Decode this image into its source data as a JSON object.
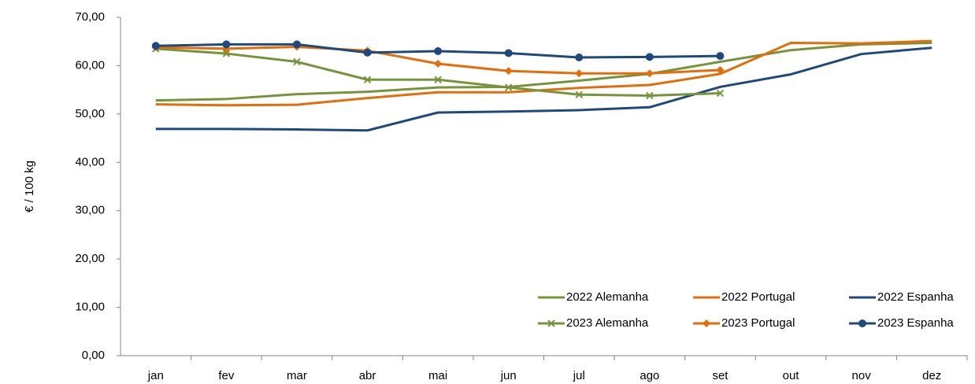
{
  "chart_data": {
    "type": "line",
    "y_label": "€ / 100 kg",
    "categories": [
      "jan",
      "fev",
      "mar",
      "abr",
      "mai",
      "jun",
      "jul",
      "ago",
      "set",
      "out",
      "nov",
      "dez"
    ],
    "ylim": [
      0,
      70
    ],
    "yticks": [
      {
        "value": 0,
        "label": "0,00"
      },
      {
        "value": 10,
        "label": "10,00"
      },
      {
        "value": 20,
        "label": "20,00"
      },
      {
        "value": 30,
        "label": "30,00"
      },
      {
        "value": 40,
        "label": "40,00"
      },
      {
        "value": 50,
        "label": "50,00"
      },
      {
        "value": 60,
        "label": "60,00"
      },
      {
        "value": 70,
        "label": "70,00"
      }
    ],
    "grid": false,
    "legend": "lower right",
    "series": [
      {
        "name": "2022 Alemanha",
        "color": "#77933c",
        "marker": "none",
        "values": [
          52.8,
          53.1,
          54.1,
          54.6,
          55.5,
          55.6,
          56.9,
          58.3,
          60.8,
          63.2,
          64.4,
          64.7
        ]
      },
      {
        "name": "2022 Portugal",
        "color": "#e46c0a",
        "marker": "none",
        "values": [
          52.0,
          51.8,
          51.9,
          53.3,
          54.5,
          54.5,
          55.4,
          56.0,
          58.3,
          64.7,
          64.6,
          65.1
        ]
      },
      {
        "name": "2022 Espanha",
        "color": "#1f497d",
        "marker": "none",
        "values": [
          46.9,
          46.9,
          46.8,
          46.6,
          50.3,
          50.5,
          50.8,
          51.4,
          55.6,
          58.2,
          62.4,
          63.7
        ]
      },
      {
        "name": "2023 Alemanha",
        "color": "#77933c",
        "marker": "x",
        "values": [
          63.5,
          62.5,
          60.8,
          57.1,
          57.1,
          55.5,
          54.0,
          53.8,
          54.3,
          null,
          null,
          null
        ]
      },
      {
        "name": "2023 Portugal",
        "color": "#e46c0a",
        "marker": "diamond",
        "values": [
          63.8,
          63.5,
          63.9,
          63.1,
          60.4,
          58.9,
          58.4,
          58.4,
          59.1,
          null,
          null,
          null
        ]
      },
      {
        "name": "2023 Espanha",
        "color": "#1f497d",
        "marker": "circle",
        "values": [
          64.1,
          64.4,
          64.4,
          62.7,
          63.0,
          62.6,
          61.7,
          61.8,
          62.0,
          null,
          null,
          null
        ]
      }
    ]
  }
}
